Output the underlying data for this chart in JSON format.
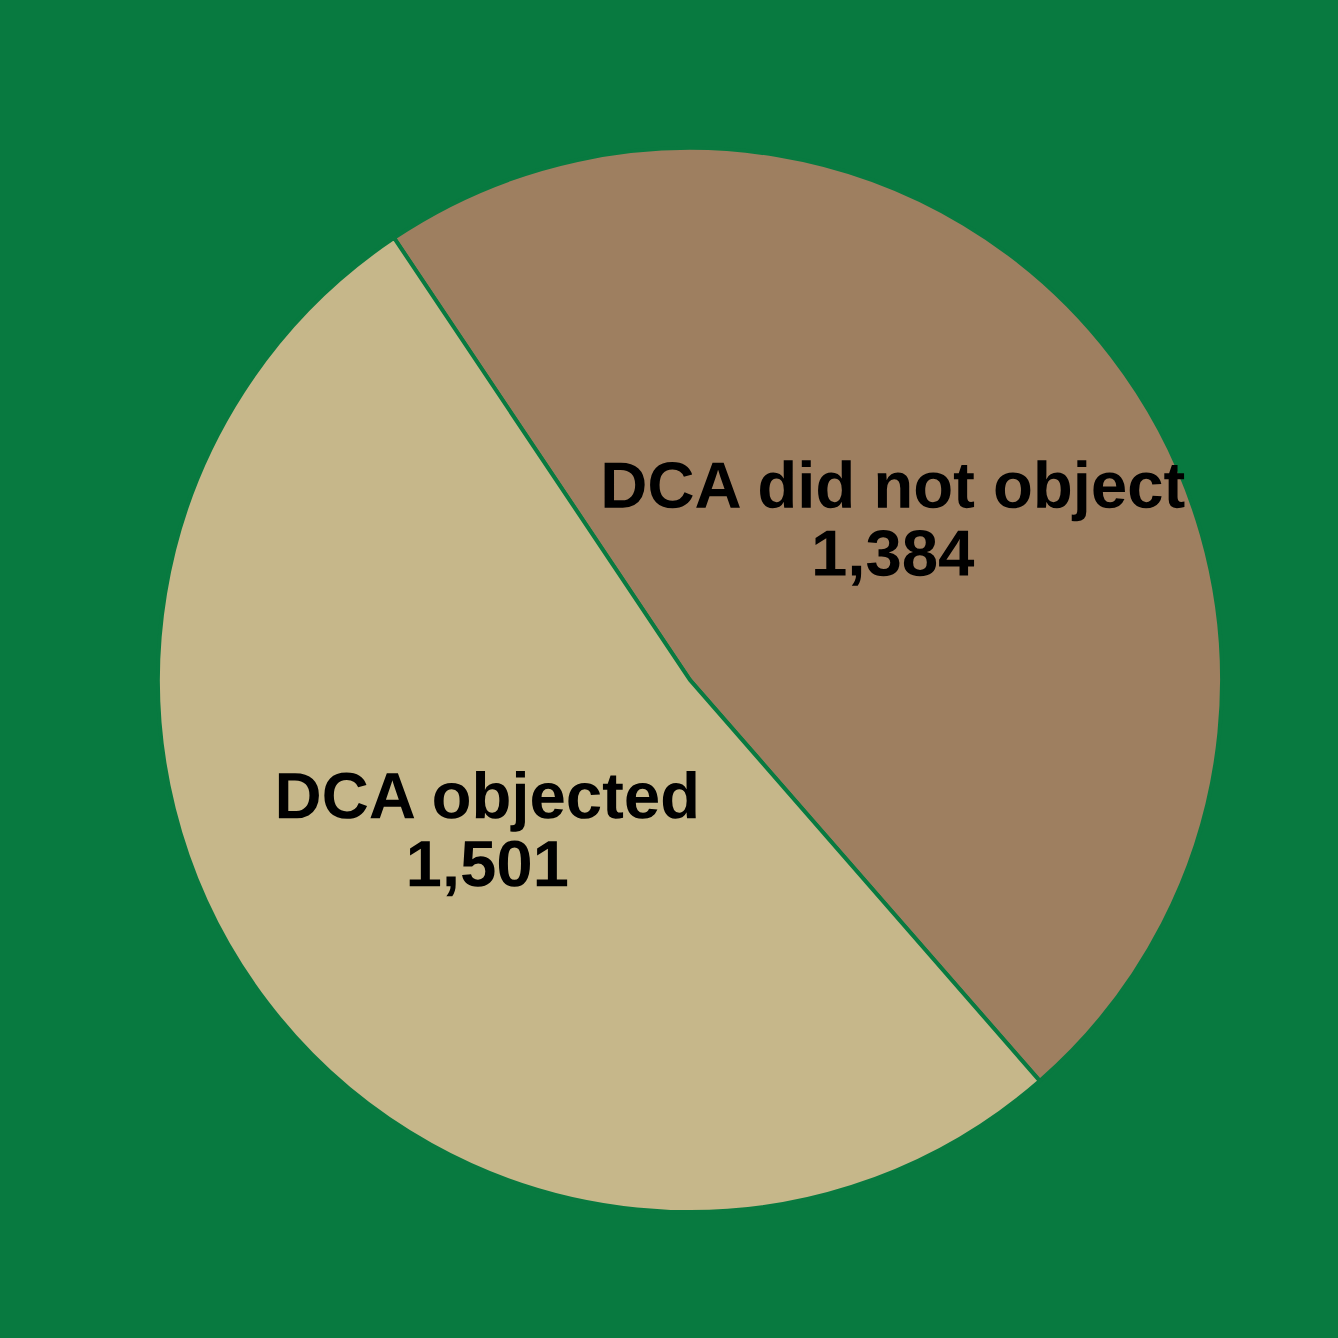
{
  "chart_data": {
    "type": "pie",
    "categories": [
      "DCA did not object",
      "DCA objected"
    ],
    "values": [
      1384,
      1501
    ],
    "value_labels": [
      "1,384",
      "1,501"
    ],
    "colors": [
      "#9e7f60",
      "#c6b78a"
    ],
    "legend": false
  }
}
